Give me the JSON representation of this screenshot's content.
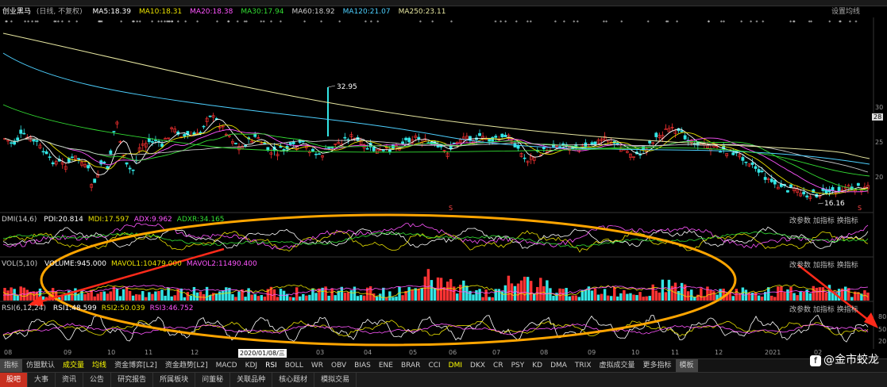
{
  "header": {
    "stock_name": "创业黑马",
    "period": "(日线, 不复权)",
    "ma_items": [
      {
        "label": "MA5:18.39",
        "color": "#ffffff"
      },
      {
        "label": "MA10:18.31",
        "color": "#e8e000"
      },
      {
        "label": "MA20:18.38",
        "color": "#ff55ff"
      },
      {
        "label": "MA30:17.94",
        "color": "#33dd33"
      },
      {
        "label": "MA60:18.92",
        "color": "#cccccc"
      },
      {
        "label": "MA120:21.07",
        "color": "#4dd0ff"
      },
      {
        "label": "MA250:23.11",
        "color": "#e6e6a0"
      }
    ],
    "settings_label": "设置均线"
  },
  "main_chart": {
    "price_high_label": "32.95",
    "price_low_label": "16.16",
    "y_ticks": [
      "30",
      "25",
      "20"
    ],
    "last_price_tag": "28"
  },
  "dmi": {
    "header": "DMI(14,6)",
    "items": [
      {
        "label": "PDI:20.814",
        "color": "#ffffff"
      },
      {
        "label": "MDI:17.597",
        "color": "#e8e000"
      },
      {
        "label": "ADX:9.962",
        "color": "#ff55ff"
      },
      {
        "label": "ADXR:34.165",
        "color": "#33dd33"
      }
    ],
    "ctrl": [
      "改参数",
      "加指标",
      "换指标"
    ]
  },
  "vol": {
    "header": "VOL(5,10)",
    "items": [
      {
        "label": "VOLUME:945.000",
        "color": "#ffffff"
      },
      {
        "label": "MAVOL1:10479.000",
        "color": "#e8e000"
      },
      {
        "label": "MAVOL2:11490.400",
        "color": "#ff55ff"
      }
    ],
    "ctrl": [
      "改参数",
      "加指标",
      "换指标"
    ]
  },
  "rsi": {
    "header": "RSI(6,12,24)",
    "items": [
      {
        "label": "RSI1:48.599",
        "color": "#ffffff"
      },
      {
        "label": "RSI2:50.039",
        "color": "#e8e000"
      },
      {
        "label": "RSI3:46.752",
        "color": "#ff55ff"
      }
    ],
    "y_ticks": [
      "80",
      "50",
      "20"
    ],
    "ctrl": [
      "改参数",
      "加指标",
      "换指标"
    ]
  },
  "x_axis": {
    "labels": [
      "08",
      "09",
      "10",
      "11",
      "12",
      "2020/01/08/三",
      "03",
      "04",
      "05",
      "06",
      "07",
      "08",
      "09",
      "10",
      "11",
      "12",
      "2021",
      "02"
    ]
  },
  "toolbar_indicators": [
    "指标",
    "仿盟默认",
    "成交量",
    "均线",
    "资金博弈[L2]",
    "资金趋势[L2]",
    "MACD",
    "KDJ",
    "RSI",
    "BOLL",
    "WR",
    "OBV",
    "BIAS",
    "ENE",
    "BRAR",
    "CCI",
    "DMI",
    "DKX",
    "CR",
    "PSY",
    "KD",
    "DMA",
    "TRIX",
    "虚拟成交量",
    "更多指标",
    "模板"
  ],
  "toolbar_bottom": [
    "股吧",
    "大事",
    "资讯",
    "公告",
    "研究报告",
    "所属板块",
    "问董秘",
    "关联品种",
    "核心题材",
    "模拟交易"
  ],
  "watermark": "@金市蛟龙",
  "colors": {
    "up": "#ff3333",
    "down": "#33e6e6",
    "annotation_ellipse": "#ffa500",
    "arrow": "#ff2a1a"
  }
}
